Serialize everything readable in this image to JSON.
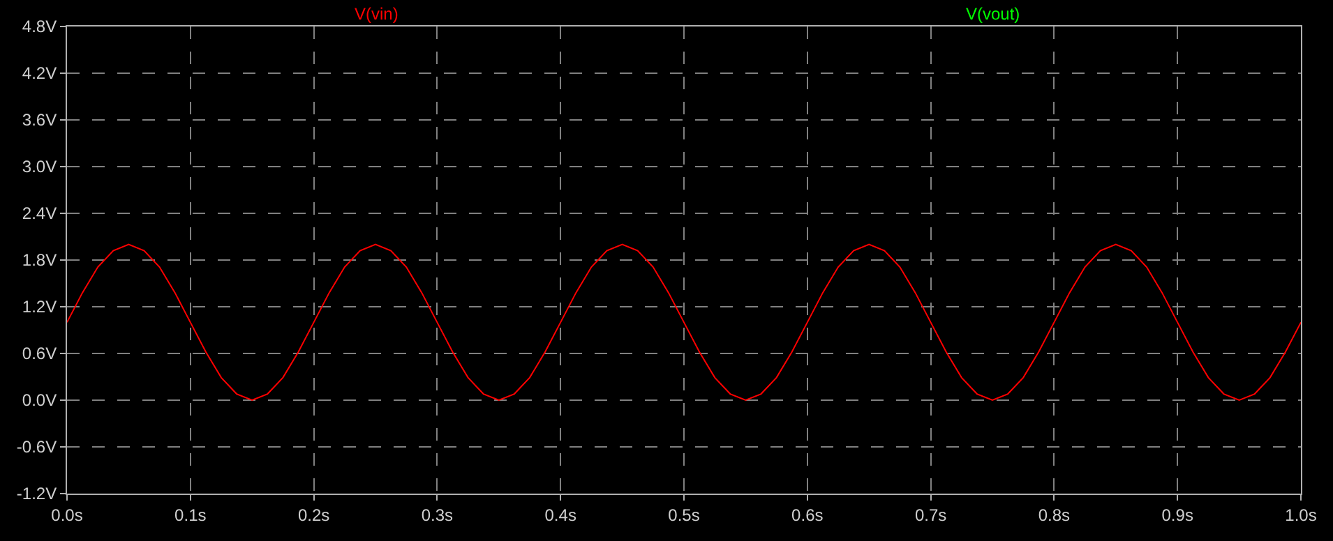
{
  "chart_data": {
    "type": "line",
    "x": [
      0,
      0.0125,
      0.025,
      0.0375,
      0.05,
      0.0625,
      0.075,
      0.0875,
      0.1,
      0.1125,
      0.125,
      0.1375,
      0.15,
      0.1625,
      0.175,
      0.1875,
      0.2,
      0.2125,
      0.225,
      0.2375,
      0.25,
      0.2625,
      0.275,
      0.2875,
      0.3,
      0.3125,
      0.325,
      0.3375,
      0.35,
      0.3625,
      0.375,
      0.3875,
      0.4,
      0.4125,
      0.425,
      0.4375,
      0.45,
      0.4625,
      0.475,
      0.4875,
      0.5,
      0.5125,
      0.525,
      0.5375,
      0.55,
      0.5625,
      0.575,
      0.5875,
      0.6,
      0.6125,
      0.625,
      0.6375,
      0.65,
      0.6625,
      0.675,
      0.6875,
      0.7,
      0.7125,
      0.725,
      0.7375,
      0.75,
      0.7625,
      0.775,
      0.7875,
      0.8,
      0.8125,
      0.825,
      0.8375,
      0.85,
      0.8625,
      0.875,
      0.8875,
      0.9,
      0.9125,
      0.925,
      0.9375,
      0.95,
      0.9625,
      0.975,
      0.9875,
      1.0
    ],
    "series": [
      {
        "name": "V(vin)",
        "color": "#ff0000",
        "values": [
          1,
          1.38,
          1.71,
          1.92,
          2,
          1.92,
          1.71,
          1.38,
          1,
          0.62,
          0.29,
          0.08,
          0,
          0.08,
          0.29,
          0.62,
          1,
          1.38,
          1.71,
          1.92,
          2,
          1.92,
          1.71,
          1.38,
          1,
          0.62,
          0.29,
          0.08,
          0,
          0.08,
          0.29,
          0.62,
          1,
          1.38,
          1.71,
          1.92,
          2,
          1.92,
          1.71,
          1.38,
          1,
          0.62,
          0.29,
          0.08,
          0,
          0.08,
          0.29,
          0.62,
          1,
          1.38,
          1.71,
          1.92,
          2,
          1.92,
          1.71,
          1.38,
          1,
          0.62,
          0.29,
          0.08,
          0,
          0.08,
          0.29,
          0.62,
          1,
          1.38,
          1.71,
          1.92,
          2,
          1.92,
          1.71,
          1.38,
          1,
          0.62,
          0.29,
          0.08,
          0,
          0.08,
          0.29,
          0.62,
          1
        ]
      },
      {
        "name": "V(vout)",
        "color": "#00ff00",
        "values": [
          null,
          null,
          null,
          null,
          null,
          null,
          null,
          null,
          null,
          null,
          null,
          null,
          null,
          null,
          null,
          null,
          null,
          null,
          null,
          null,
          null,
          null,
          null,
          null,
          null,
          null,
          null,
          null,
          null,
          null,
          null,
          null,
          null,
          null,
          null,
          null,
          null,
          null,
          null,
          null,
          null,
          null,
          null,
          null,
          null,
          null,
          null,
          null,
          null,
          null,
          null,
          null,
          null,
          null,
          null,
          null,
          null,
          null,
          null,
          null,
          null,
          null,
          null,
          null,
          null,
          null,
          null,
          null,
          null,
          null,
          null,
          null,
          null,
          null,
          null,
          null,
          null,
          null,
          null,
          null,
          null
        ]
      }
    ],
    "xlim": [
      0,
      1.0
    ],
    "xticks": [
      {
        "value": 0,
        "label": "0.0s"
      },
      {
        "value": 0.1,
        "label": "0.1s"
      },
      {
        "value": 0.2,
        "label": "0.2s"
      },
      {
        "value": 0.3,
        "label": "0.3s"
      },
      {
        "value": 0.4,
        "label": "0.4s"
      },
      {
        "value": 0.5,
        "label": "0.5s"
      },
      {
        "value": 0.6,
        "label": "0.6s"
      },
      {
        "value": 0.7,
        "label": "0.7s"
      },
      {
        "value": 0.8,
        "label": "0.8s"
      },
      {
        "value": 0.9,
        "label": "0.9s"
      },
      {
        "value": 1.0,
        "label": "1.0s"
      }
    ],
    "ylim": [
      -1.2,
      4.8
    ],
    "yticks": [
      {
        "value": -1.2,
        "label": "-1.2V"
      },
      {
        "value": -0.6,
        "label": "-0.6V"
      },
      {
        "value": 0,
        "label": "0.0V"
      },
      {
        "value": 0.6,
        "label": "0.6V"
      },
      {
        "value": 1.2,
        "label": "1.2V"
      },
      {
        "value": 1.8,
        "label": "1.8V"
      },
      {
        "value": 2.4,
        "label": "2.4V"
      },
      {
        "value": 3.0,
        "label": "3.0V"
      },
      {
        "value": 3.6,
        "label": "3.6V"
      },
      {
        "value": 4.2,
        "label": "4.2V"
      },
      {
        "value": 4.8,
        "label": "4.8V"
      }
    ],
    "grid": true,
    "legend": "top",
    "marker": "none",
    "line_style": "solid"
  }
}
